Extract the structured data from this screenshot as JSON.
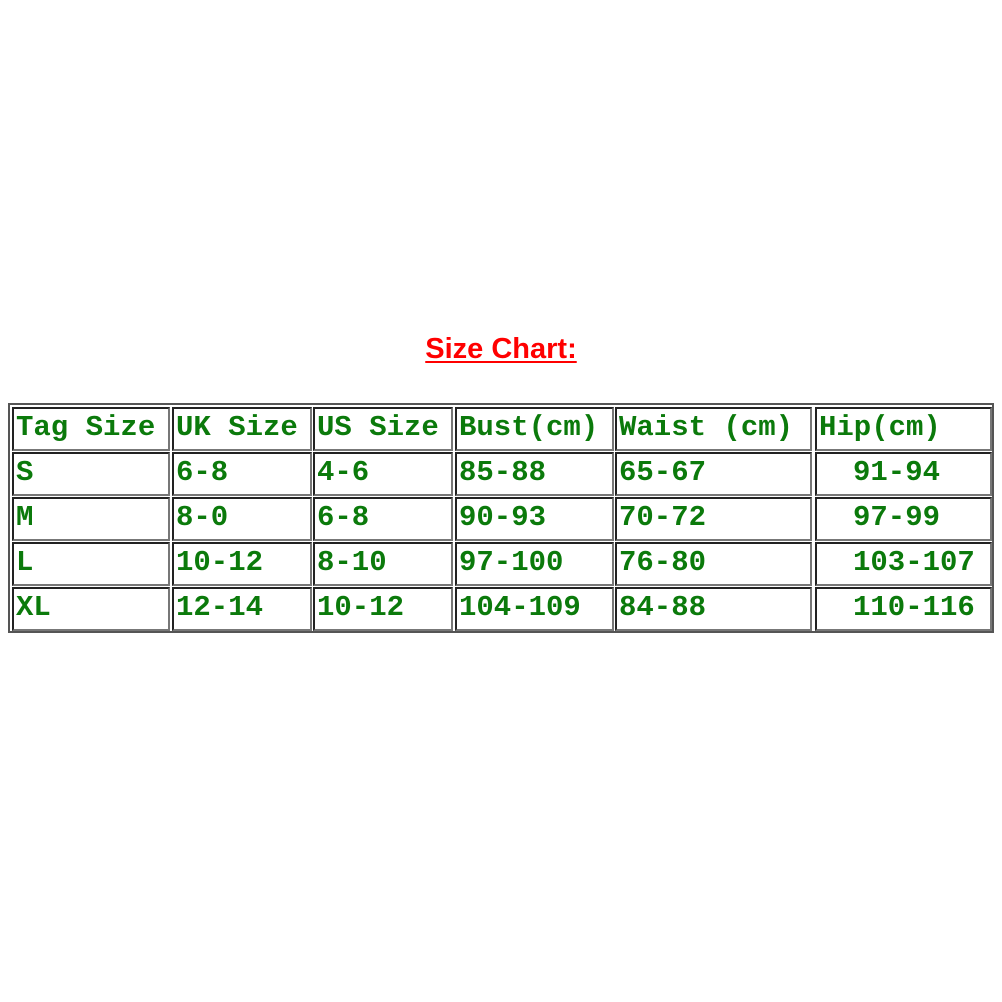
{
  "title": "Size Chart:",
  "colors": {
    "title": "#ff0000",
    "text": "#0b7a0b",
    "border": "#222222"
  },
  "table": {
    "headers": [
      "Tag Size",
      "UK Size",
      "US Size",
      "Bust(cm)",
      "Waist (cm)",
      "Hip(cm)"
    ],
    "rows": [
      [
        "S",
        "6-8",
        "4-6",
        "85-88",
        "65-67",
        "91-94"
      ],
      [
        "M",
        "8-0",
        "6-8",
        "90-93",
        "70-72",
        "97-99"
      ],
      [
        "L",
        "10-12",
        "8-10",
        "97-100",
        "76-80",
        "103-107"
      ],
      [
        "XL",
        "12-14",
        "10-12",
        "104-109",
        "84-88",
        "110-116"
      ]
    ]
  }
}
